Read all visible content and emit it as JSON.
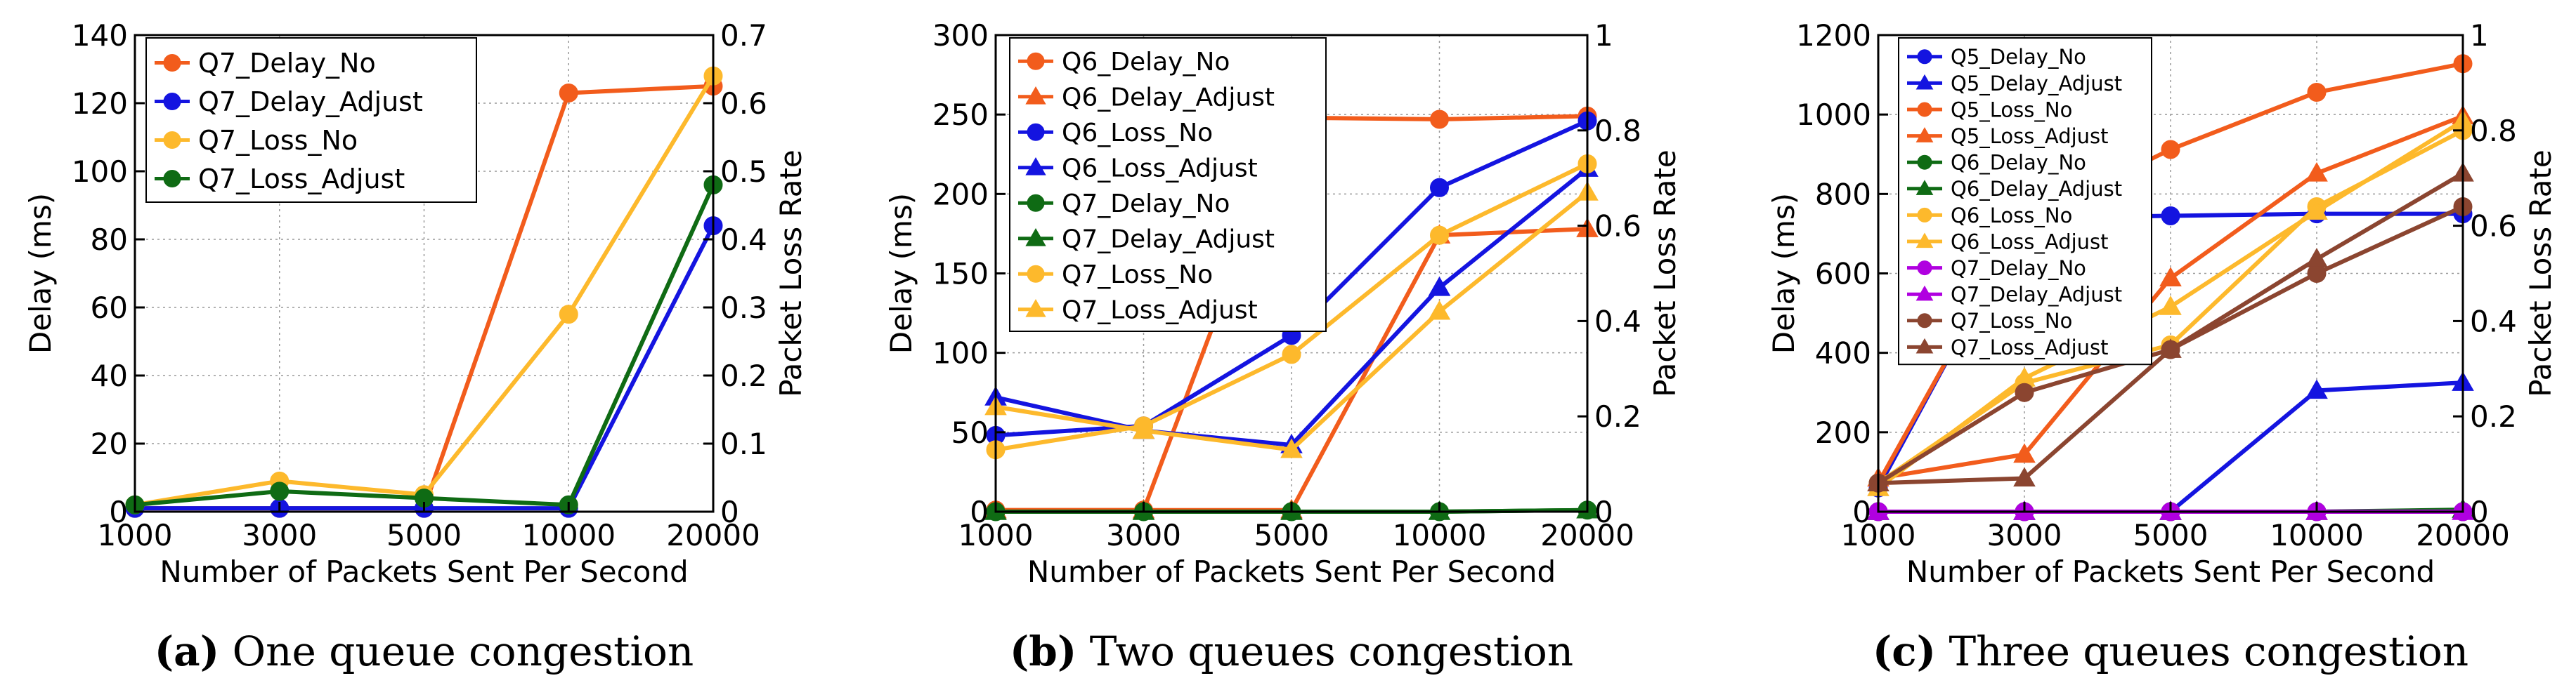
{
  "chart_data": [
    {
      "type": "line",
      "xlabel": "Number of Packets Sent Per Second",
      "ylabel": "Delay (ms)",
      "y2label": "Packet Loss Rate",
      "categories": [
        "1000",
        "3000",
        "5000",
        "10000",
        "20000"
      ],
      "ylim": [
        0,
        140
      ],
      "yticks": [
        0,
        20,
        40,
        60,
        80,
        100,
        120,
        140
      ],
      "y2lim": [
        0,
        0.7
      ],
      "y2ticks": [
        "0",
        "0.1",
        "0.2",
        "0.3",
        "0.4",
        "0.5",
        "0.6",
        "0.7"
      ],
      "grid": true,
      "legend": "top-left",
      "caption_letter": "(a)",
      "caption_text": "One queue congestion",
      "series": [
        {
          "name": "Q7_Delay_No",
          "axis": "left",
          "color": "#f25c1c",
          "marker": "circle",
          "values": [
            1,
            1,
            1,
            123,
            125
          ]
        },
        {
          "name": "Q7_Delay_Adjust",
          "axis": "left",
          "color": "#1414e0",
          "marker": "circle",
          "values": [
            1,
            1,
            1,
            1,
            84
          ]
        },
        {
          "name": "Q7_Loss_No",
          "axis": "right",
          "color": "#fdb92c",
          "marker": "circle",
          "values": [
            0.01,
            0.045,
            0.025,
            0.29,
            0.64
          ]
        },
        {
          "name": "Q7_Loss_Adjust",
          "axis": "right",
          "color": "#0f6b14",
          "marker": "circle",
          "values": [
            0.01,
            0.03,
            0.02,
            0.01,
            0.48
          ]
        }
      ]
    },
    {
      "type": "line",
      "xlabel": "Number of Packets Sent Per Second",
      "ylabel": "Delay (ms)",
      "y2label": "Packet Loss Rate",
      "categories": [
        "1000",
        "3000",
        "5000",
        "10000",
        "20000"
      ],
      "ylim": [
        0,
        300
      ],
      "yticks": [
        0,
        50,
        100,
        150,
        200,
        250,
        300
      ],
      "y2lim": [
        0,
        1
      ],
      "y2ticks": [
        "0",
        "0.2",
        "0.4",
        "0.6",
        "0.8",
        "1"
      ],
      "grid": true,
      "legend": "top-left",
      "caption_letter": "(b)",
      "caption_text": "Two queues congestion",
      "series": [
        {
          "name": "Q6_Delay_No",
          "axis": "left",
          "color": "#f25c1c",
          "marker": "circle",
          "values": [
            1,
            1,
            248,
            247,
            249
          ]
        },
        {
          "name": "Q6_Delay_Adjust",
          "axis": "left",
          "color": "#f25c1c",
          "marker": "triangle",
          "values": [
            1,
            1,
            1,
            174,
            178
          ]
        },
        {
          "name": "Q6_Loss_No",
          "axis": "right",
          "color": "#1414e0",
          "marker": "circle",
          "values": [
            0.16,
            0.18,
            0.37,
            0.68,
            0.82
          ]
        },
        {
          "name": "Q6_Loss_Adjust",
          "axis": "right",
          "color": "#1414e0",
          "marker": "triangle",
          "values": [
            0.24,
            0.17,
            0.14,
            0.47,
            0.72
          ]
        },
        {
          "name": "Q7_Delay_No",
          "axis": "left",
          "color": "#0f6b14",
          "marker": "circle",
          "values": [
            0,
            0,
            0,
            0,
            1
          ]
        },
        {
          "name": "Q7_Delay_Adjust",
          "axis": "left",
          "color": "#0f6b14",
          "marker": "triangle",
          "values": [
            0,
            0,
            0,
            0,
            1
          ]
        },
        {
          "name": "Q7_Loss_No",
          "axis": "right",
          "color": "#fdb92c",
          "marker": "circle",
          "values": [
            0.13,
            0.18,
            0.33,
            0.58,
            0.73
          ]
        },
        {
          "name": "Q7_Loss_Adjust",
          "axis": "right",
          "color": "#fdb92c",
          "marker": "triangle",
          "values": [
            0.22,
            0.17,
            0.13,
            0.42,
            0.67
          ]
        }
      ]
    },
    {
      "type": "line",
      "xlabel": "Number of Packets Sent Per Second",
      "ylabel": "Delay (ms)",
      "y2label": "Packet Loss Rate",
      "categories": [
        "1000",
        "3000",
        "5000",
        "10000",
        "20000"
      ],
      "ylim": [
        0,
        1200
      ],
      "yticks": [
        0,
        200,
        400,
        600,
        800,
        1000,
        1200
      ],
      "y2lim": [
        0,
        1
      ],
      "y2ticks": [
        "0",
        "0.2",
        "0.4",
        "0.6",
        "0.8",
        "1"
      ],
      "grid": true,
      "legend": "top-left",
      "caption_letter": "(c)",
      "caption_text": "Three queues congestion",
      "series": [
        {
          "name": "Q5_Delay_No",
          "axis": "left",
          "color": "#1414e0",
          "marker": "circle",
          "values": [
            60,
            740,
            745,
            750,
            750
          ]
        },
        {
          "name": "Q5_Delay_Adjust",
          "axis": "left",
          "color": "#1414e0",
          "marker": "triangle",
          "values": [
            0,
            0,
            0,
            305,
            325
          ]
        },
        {
          "name": "Q5_Loss_No",
          "axis": "right",
          "color": "#f25c1c",
          "marker": "circle",
          "values": [
            0.06,
            0.61,
            0.76,
            0.88,
            0.94
          ]
        },
        {
          "name": "Q5_Loss_Adjust",
          "axis": "right",
          "color": "#f25c1c",
          "marker": "triangle",
          "values": [
            0.07,
            0.12,
            0.49,
            0.71,
            0.83
          ]
        },
        {
          "name": "Q6_Delay_No",
          "axis": "left",
          "color": "#0f6b14",
          "marker": "circle",
          "values": [
            0,
            0,
            0,
            0,
            0
          ]
        },
        {
          "name": "Q6_Delay_Adjust",
          "axis": "left",
          "color": "#0f6b14",
          "marker": "triangle",
          "values": [
            0,
            0,
            0,
            0,
            5
          ]
        },
        {
          "name": "Q6_Loss_No",
          "axis": "right",
          "color": "#fdb92c",
          "marker": "circle",
          "values": [
            0.06,
            0.27,
            0.35,
            0.64,
            0.8
          ]
        },
        {
          "name": "Q6_Loss_Adjust",
          "axis": "right",
          "color": "#fdb92c",
          "marker": "triangle",
          "values": [
            0.05,
            0.28,
            0.43,
            0.63,
            0.82
          ]
        },
        {
          "name": "Q7_Delay_No",
          "axis": "left",
          "color": "#b000e0",
          "marker": "circle",
          "values": [
            0,
            0,
            0,
            0,
            0
          ]
        },
        {
          "name": "Q7_Delay_Adjust",
          "axis": "left",
          "color": "#b000e0",
          "marker": "triangle",
          "values": [
            0,
            0,
            0,
            0,
            0
          ]
        },
        {
          "name": "Q7_Loss_No",
          "axis": "right",
          "color": "#8b4530",
          "marker": "circle",
          "values": [
            0.06,
            0.25,
            0.34,
            0.5,
            0.64
          ]
        },
        {
          "name": "Q7_Loss_Adjust",
          "axis": "right",
          "color": "#8b4530",
          "marker": "triangle",
          "values": [
            0.06,
            0.07,
            0.34,
            0.53,
            0.71
          ]
        }
      ]
    }
  ]
}
